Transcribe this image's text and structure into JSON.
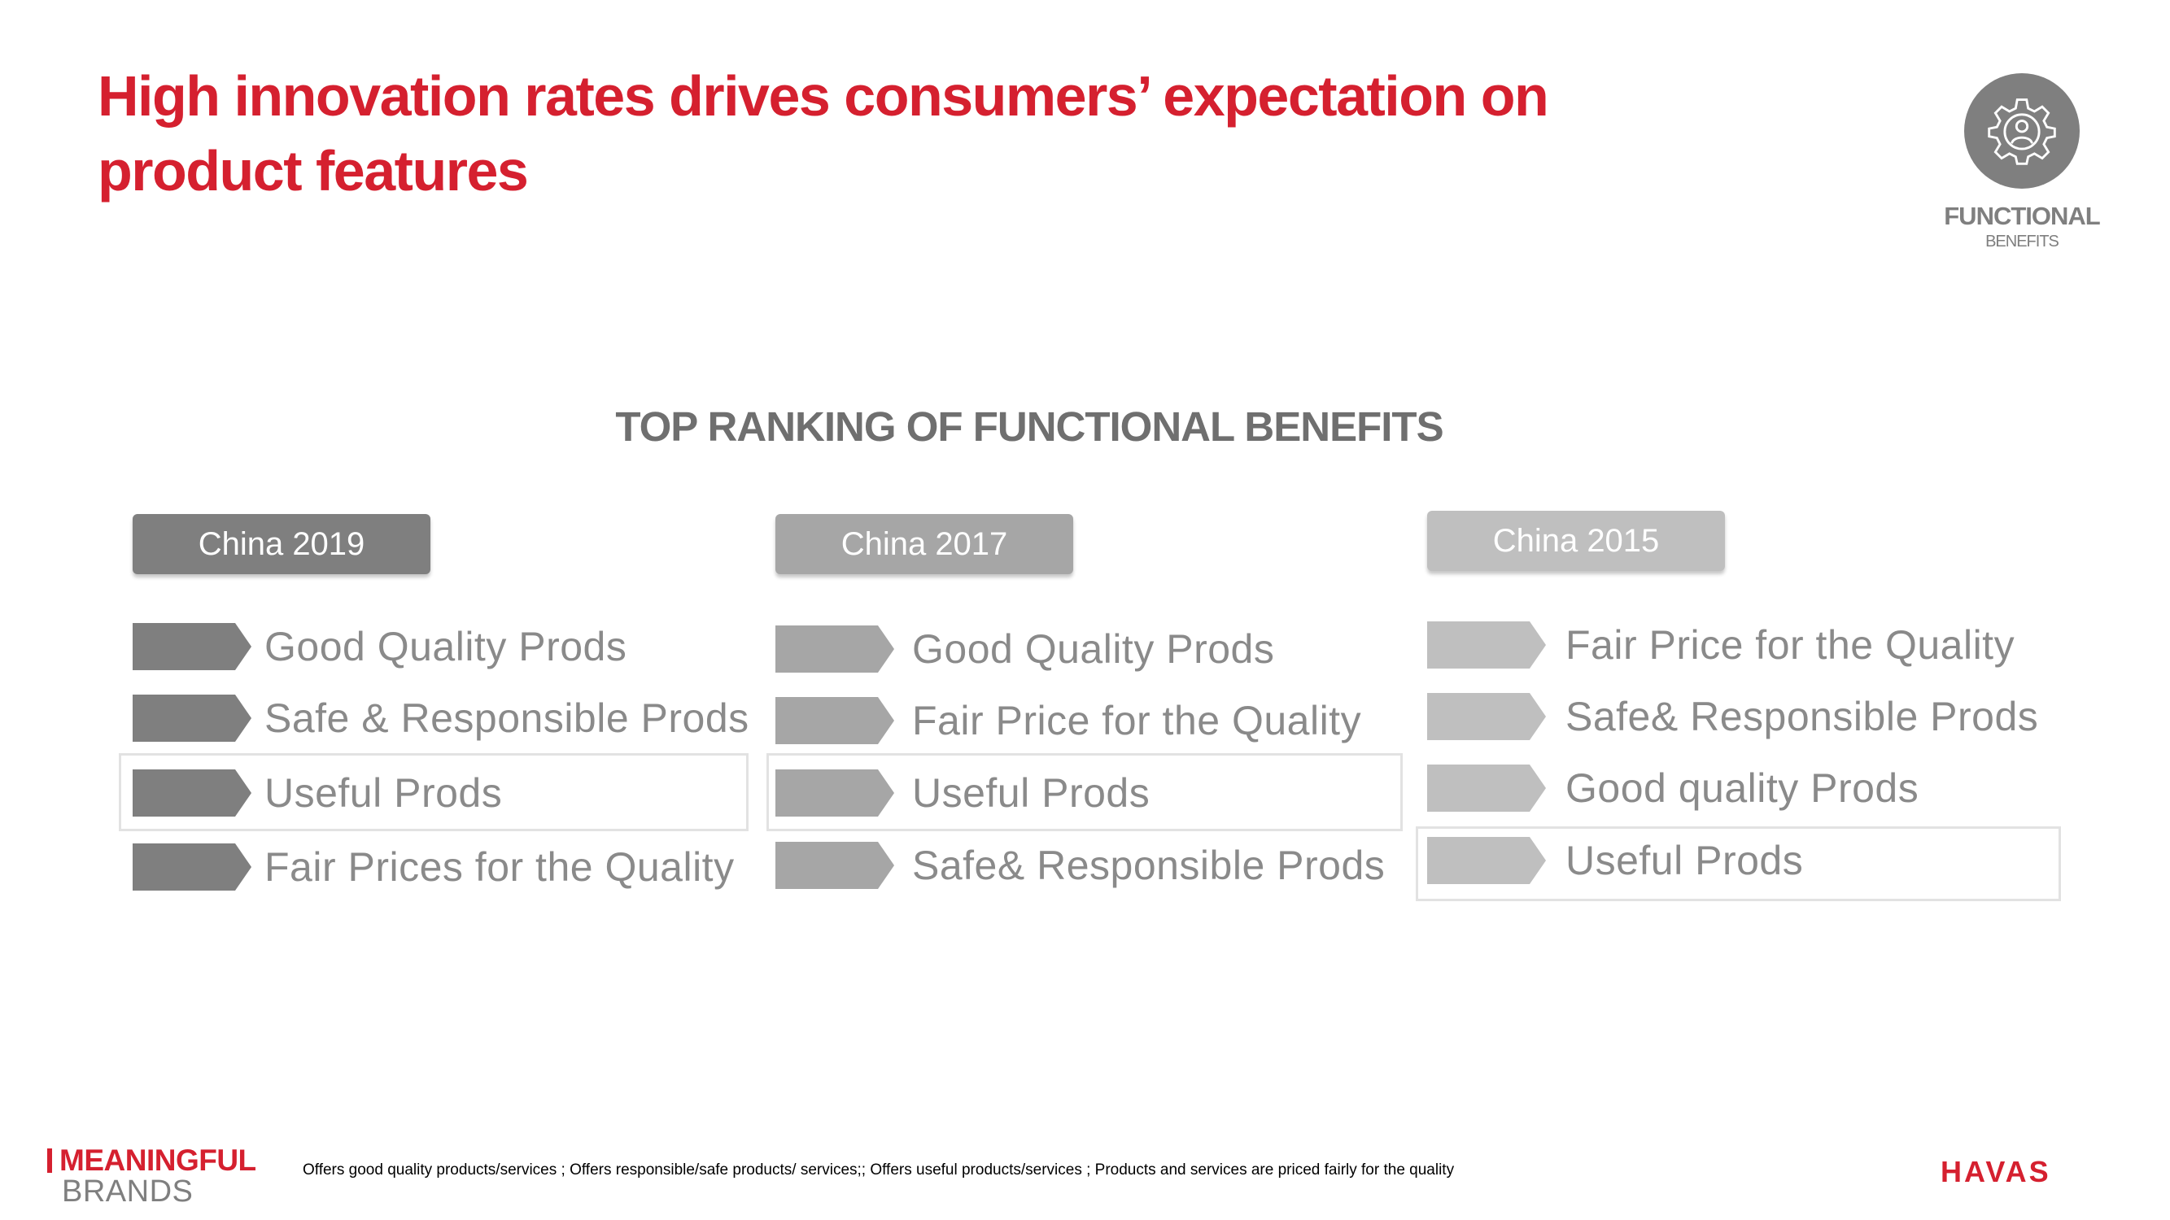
{
  "title": "High innovation rates drives consumers’ expectation on product features",
  "badge": {
    "line1": "FUNCTIONAL",
    "line2": "BENEFITS",
    "icon": "gear-person-icon",
    "color": "#7f7f7f"
  },
  "section_title": "TOP RANKING OF FUNCTIONAL BENEFITS",
  "columns": [
    {
      "header": "China 2019",
      "header_color": "#7f7f7f",
      "items": [
        "Good Quality Prods",
        "Safe & Responsible Prods",
        "Useful Prods",
        "Fair Prices for the Quality"
      ],
      "highlighted_rank": 3
    },
    {
      "header": "China 2017",
      "header_color": "#a6a6a6",
      "items": [
        "Good Quality Prods",
        "Fair Price for the Quality",
        "Useful Prods",
        "Safe& Responsible Prods"
      ],
      "highlighted_rank": 3
    },
    {
      "header": "China 2015",
      "header_color": "#bfbfbf",
      "items": [
        "Fair Price for the Quality",
        "Safe& Responsible Prods",
        "Good quality Prods",
        "Useful Prods"
      ],
      "highlighted_rank": 4
    }
  ],
  "footer": {
    "brand_top": "MEANINGFUL",
    "brand_bottom": "BRANDS",
    "note": "Offers good quality products/services ; Offers responsible/safe products/ services;; Offers useful products/services ; Products and services are priced fairly for the quality",
    "havas": "HAVAS"
  },
  "colors": {
    "accent": "#d5202f",
    "text_gray": "#8a8a8a",
    "highlight_border": "#e2e2e2"
  }
}
